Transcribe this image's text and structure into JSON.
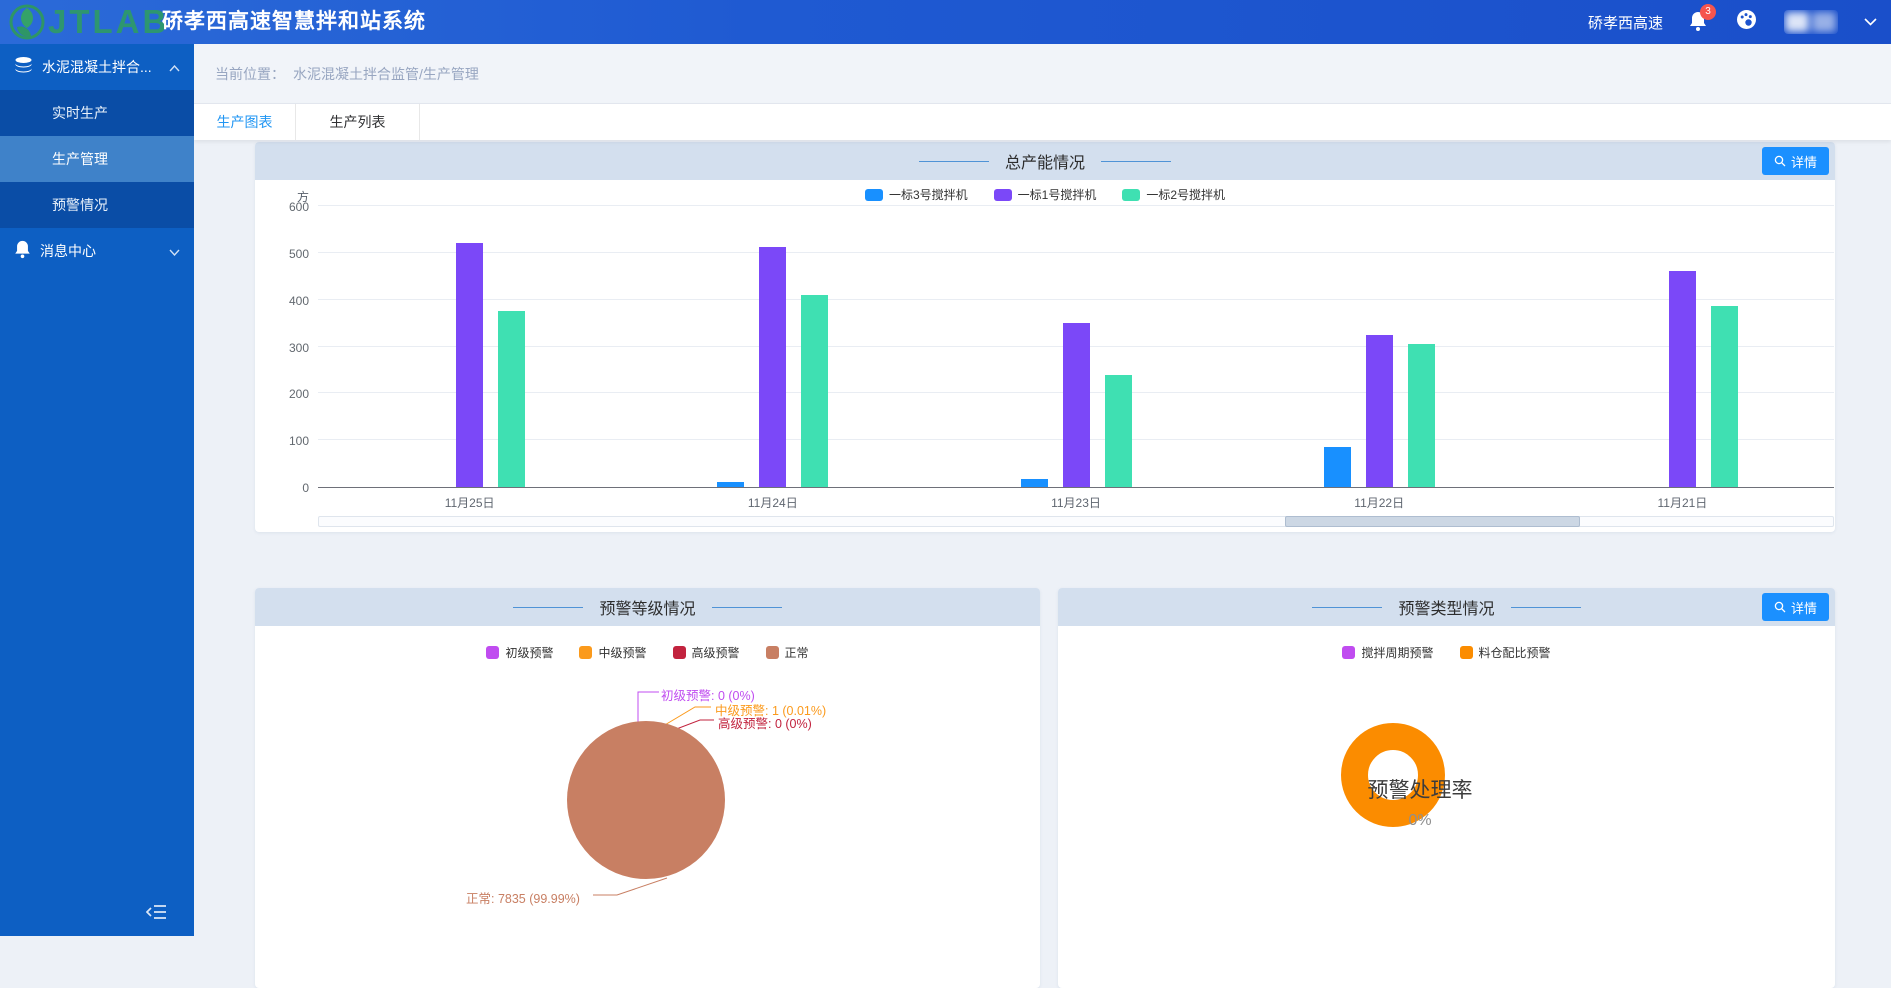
{
  "navbar": {
    "logo_text": "JTLAB",
    "title": "硚孝西高速智慧拌和站系统",
    "org_name": "硚孝西高速",
    "notification_count": "3"
  },
  "sidebar": {
    "group_label": "水泥混凝土拌合...",
    "submenu": [
      {
        "label": "实时生产",
        "active": false
      },
      {
        "label": "生产管理",
        "active": true
      },
      {
        "label": "预警情况",
        "active": false
      }
    ],
    "message_center_label": "消息中心"
  },
  "breadcrumb": {
    "prefix": "当前位置：",
    "path": "水泥混凝土拌合监管/生产管理"
  },
  "tabs": [
    {
      "label": "生产图表",
      "active": true
    },
    {
      "label": "生产列表",
      "active": false
    }
  ],
  "buttons": {
    "detail": "详情"
  },
  "colors": {
    "accent": "#1b90ff",
    "panel_header": "#d3dfee",
    "sidebar": "#0d5fc3"
  },
  "chart_data": [
    {
      "type": "bar",
      "title": "总产能情况",
      "ylabel": "方",
      "ylim": [
        0,
        600
      ],
      "yticks": [
        0,
        100,
        200,
        300,
        400,
        500,
        600
      ],
      "categories": [
        "11月25日",
        "11月24日",
        "11月23日",
        "11月22日",
        "11月21日"
      ],
      "series": [
        {
          "name": "一标3号搅拌机",
          "color": "#1890ff",
          "values": [
            0,
            11,
            18,
            86,
            0
          ]
        },
        {
          "name": "一标1号搅拌机",
          "color": "#7b48f8",
          "values": [
            522,
            513,
            350,
            325,
            462
          ]
        },
        {
          "name": "一标2号搅拌机",
          "color": "#3fe0b2",
          "values": [
            376,
            411,
            240,
            306,
            387
          ]
        }
      ],
      "legend_position": "top",
      "grid": true,
      "scrollbar": {
        "start_pct": 63.8,
        "width_pct": 19.5
      }
    },
    {
      "type": "pie",
      "title": "预警等级情况",
      "slices": [
        {
          "name": "初级预警",
          "value": 0,
          "pct": "0%",
          "color": "#c04cf0",
          "label": "初级预警: 0 (0%)"
        },
        {
          "name": "中级预警",
          "value": 1,
          "pct": "0.01%",
          "color": "#fb9a1c",
          "label": "中级预警: 1 (0.01%)"
        },
        {
          "name": "高级预警",
          "value": 0,
          "pct": "0%",
          "color": "#c2233e",
          "label": "高级预警: 0 (0%)"
        },
        {
          "name": "正常",
          "value": 7835,
          "pct": "99.99%",
          "color": "#c87f63",
          "label": "正常: 7835 (99.99%)"
        }
      ],
      "legend_position": "top"
    },
    {
      "type": "donut",
      "title": "预警类型情况",
      "legend": [
        {
          "name": "搅拌周期预警",
          "color": "#c04cf0"
        },
        {
          "name": "料仓配比预警",
          "color": "#fb8c00"
        }
      ],
      "ring_color": "#fb8c00",
      "center_label": "预警处理率",
      "center_value": "0%"
    }
  ]
}
